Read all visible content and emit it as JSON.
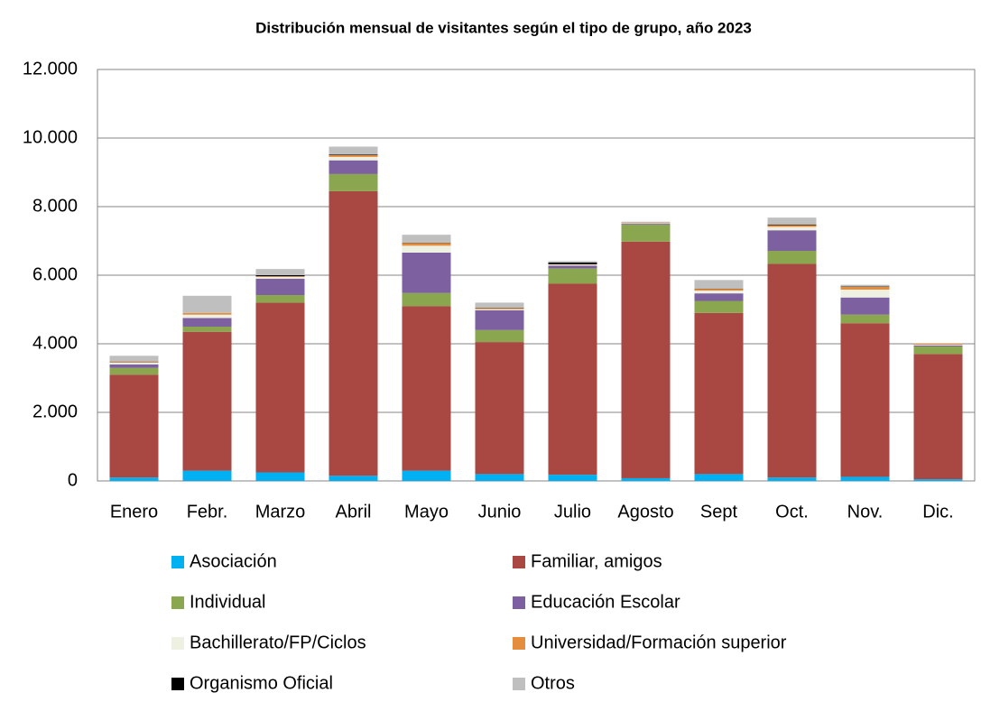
{
  "chart_data": {
    "type": "stacked_bar",
    "title": "Distribución mensual de visitantes según el tipo de grupo, año 2023",
    "categories": [
      "Enero",
      "Febr.",
      "Marzo",
      "Abril",
      "Mayo",
      "Junio",
      "Julio",
      "Agosto",
      "Sept",
      "Oct.",
      "Nov.",
      "Dic."
    ],
    "series": [
      {
        "name": "Asociación",
        "color": "#00b0f0",
        "values": [
          100,
          300,
          250,
          150,
          300,
          200,
          180,
          80,
          200,
          100,
          120,
          50
        ]
      },
      {
        "name": "Familiar, amigos",
        "color": "#a94743",
        "values": [
          3000,
          4050,
          4950,
          8300,
          4800,
          3850,
          5570,
          6900,
          4700,
          6230,
          4480,
          3650
        ]
      },
      {
        "name": "Individual",
        "color": "#8aa64f",
        "values": [
          200,
          150,
          220,
          500,
          380,
          350,
          450,
          500,
          350,
          380,
          250,
          220
        ]
      },
      {
        "name": "Educación Escolar",
        "color": "#7d60a0",
        "values": [
          100,
          250,
          480,
          400,
          1180,
          580,
          80,
          30,
          220,
          600,
          500,
          30
        ]
      },
      {
        "name": "Bachillerato/FP/Ciclos",
        "color": "#eef0e2",
        "values": [
          50,
          100,
          50,
          100,
          200,
          30,
          30,
          20,
          80,
          100,
          230,
          20
        ]
      },
      {
        "name": "Universidad/Formación superior",
        "color": "#e38d3d",
        "values": [
          20,
          50,
          20,
          50,
          80,
          30,
          10,
          10,
          50,
          50,
          80,
          30
        ]
      },
      {
        "name": "Organismo Oficial",
        "color": "#000000",
        "values": [
          10,
          0,
          30,
          20,
          10,
          10,
          50,
          0,
          10,
          20,
          10,
          0
        ]
      },
      {
        "name": "Otros",
        "color": "#bfbfbf",
        "values": [
          170,
          500,
          180,
          230,
          230,
          150,
          40,
          20,
          250,
          200,
          50,
          20
        ]
      }
    ],
    "ylim": [
      0,
      12000
    ],
    "yticks": [
      0,
      {
        "value": 2000,
        "label": "2.000"
      },
      {
        "value": 4000,
        "label": "4.000"
      },
      {
        "value": 6000,
        "label": "6.000"
      },
      {
        "value": 8000,
        "label": "8.000"
      },
      {
        "value": 10000,
        "label": "10.000"
      },
      {
        "value": 12000,
        "label": "12.000"
      }
    ],
    "grid": true
  }
}
